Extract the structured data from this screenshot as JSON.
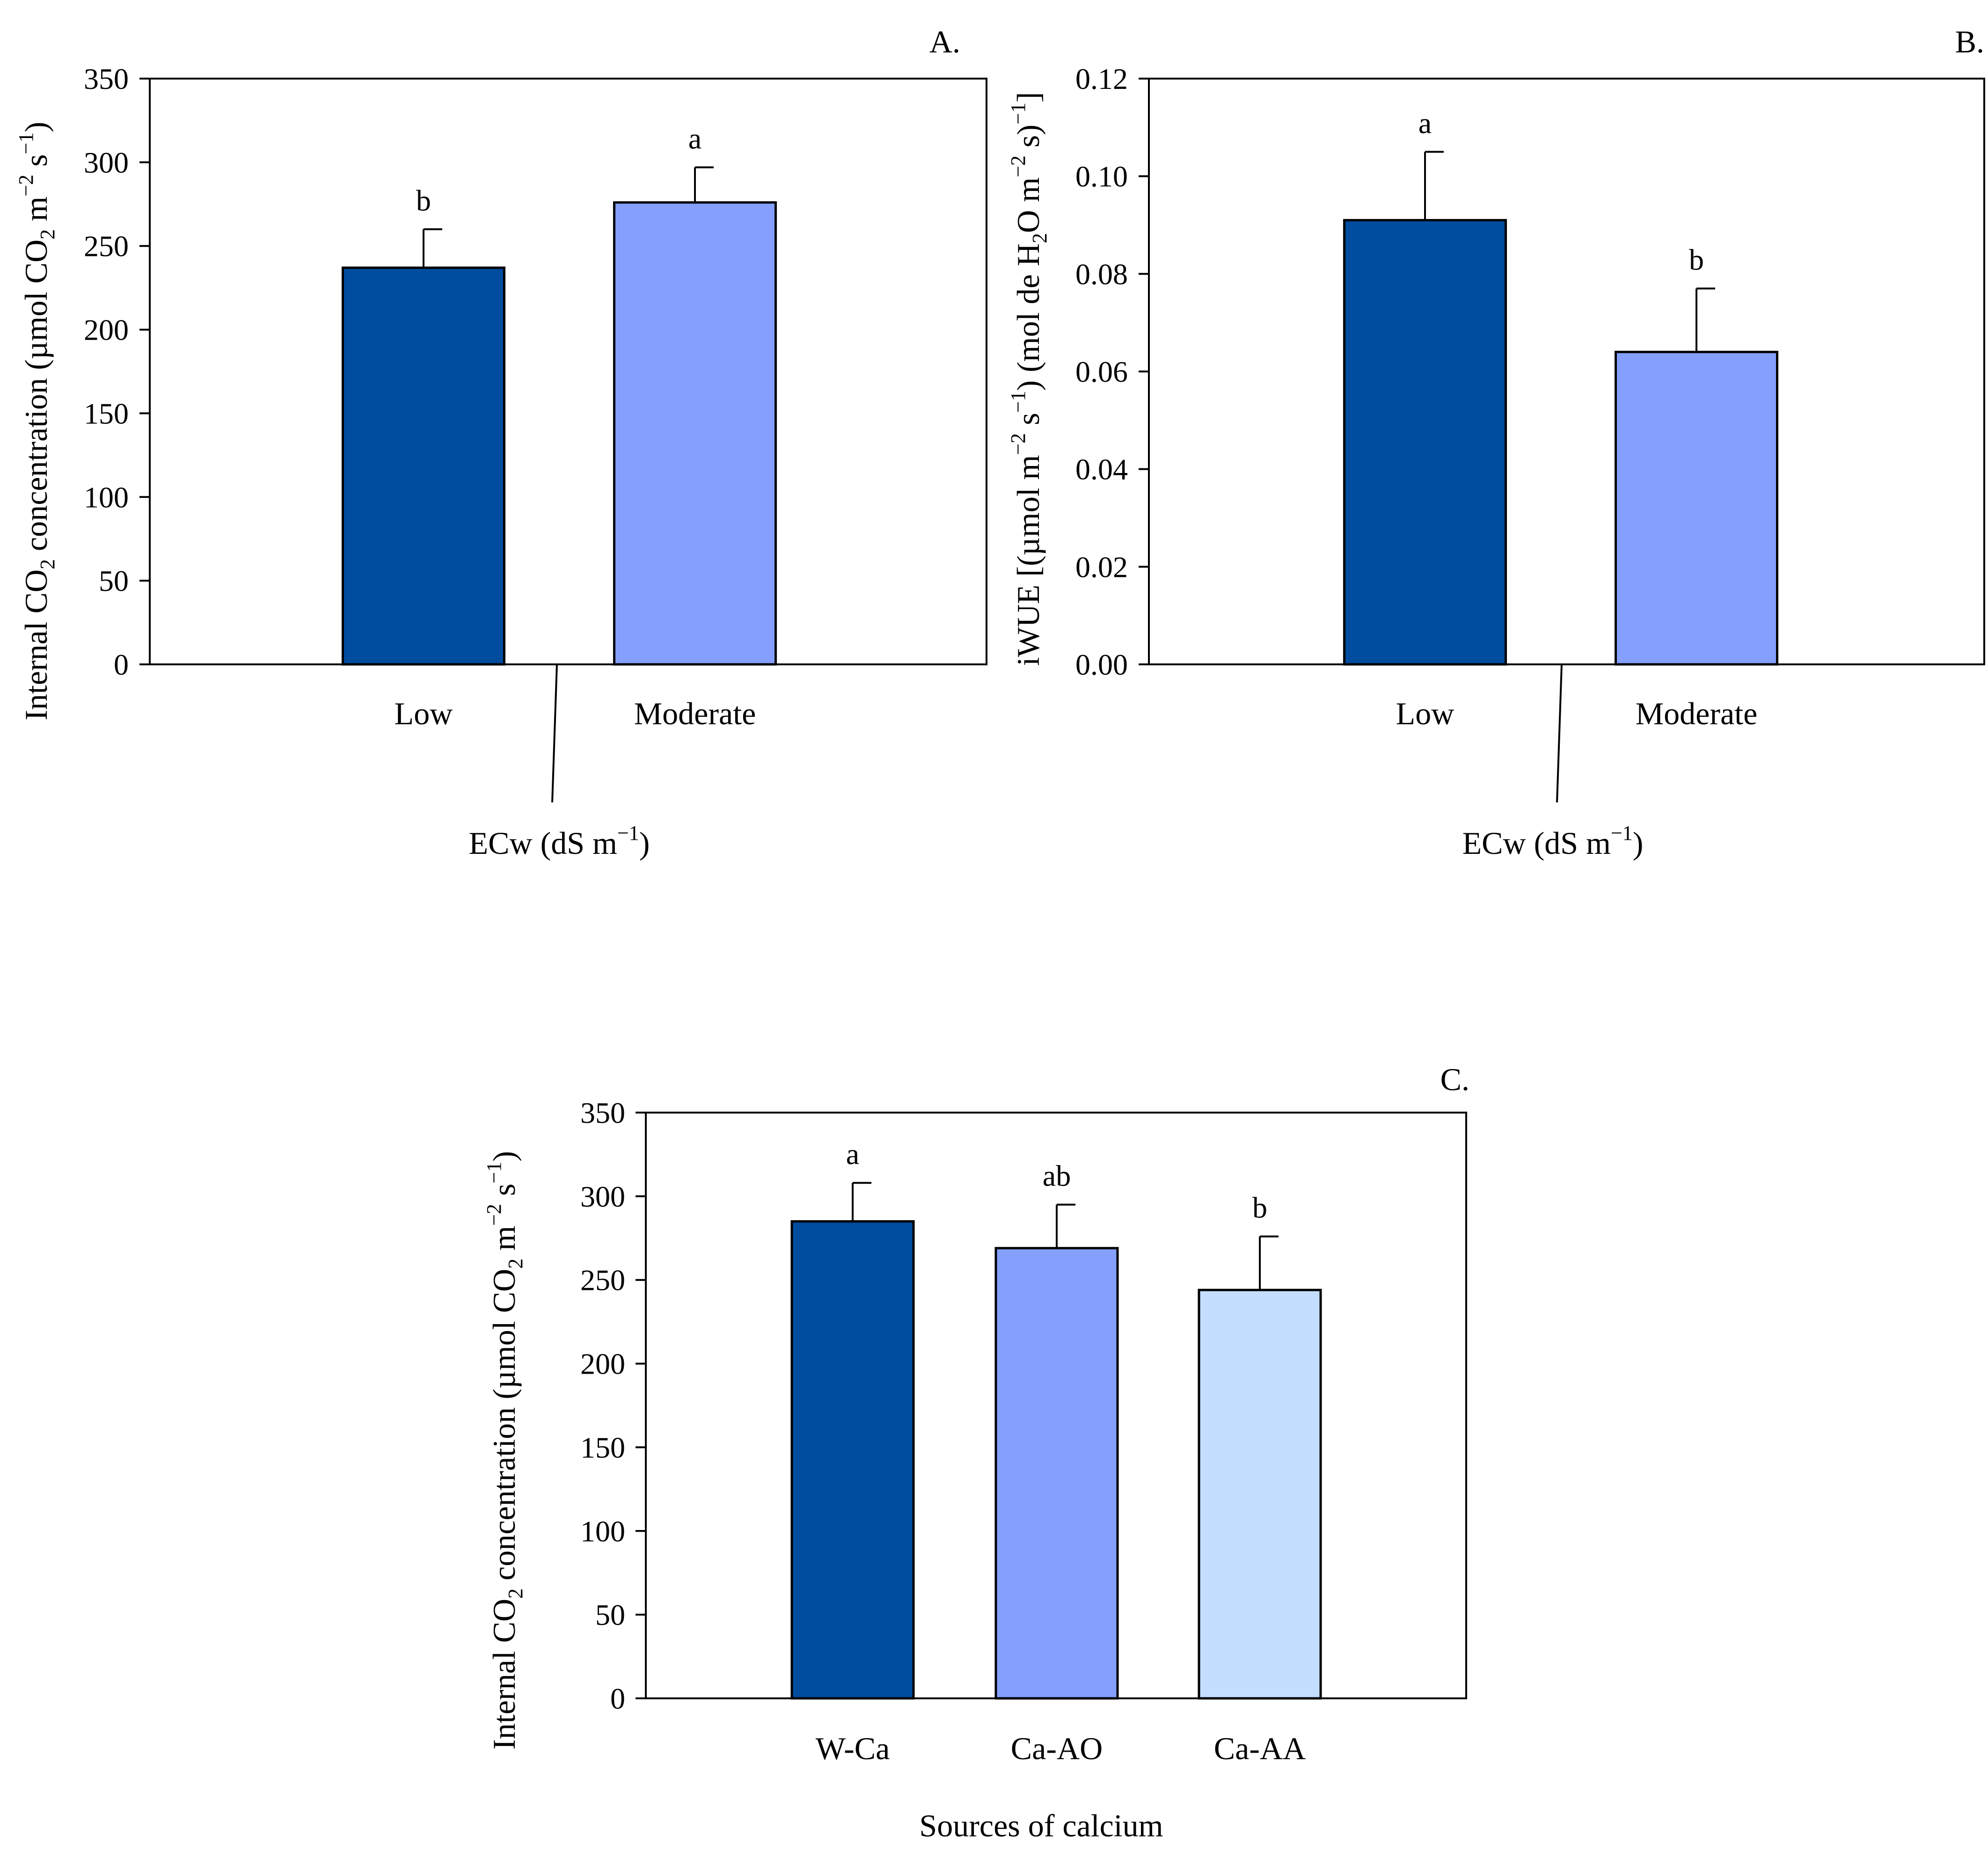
{
  "chart_data": [
    {
      "id": "A",
      "type": "bar",
      "panel_label": "A.",
      "categories": [
        "Low",
        "Moderate"
      ],
      "values": [
        237,
        276
      ],
      "errors": [
        23,
        21
      ],
      "letters": [
        "b",
        "a"
      ],
      "colors": [
        "#004C9E",
        "#849FFD"
      ],
      "ylim": [
        0,
        350
      ],
      "yticks": [
        "0",
        "50",
        "100",
        "150",
        "200",
        "250",
        "300",
        "350"
      ],
      "ylabel": "Internal CO2 concentration (µmol CO2 m−2 s−1)",
      "xlabel": "ECw (dS m−1)"
    },
    {
      "id": "B",
      "type": "bar",
      "panel_label": "B.",
      "categories": [
        "Low",
        "Moderate"
      ],
      "values": [
        0.091,
        0.064
      ],
      "errors": [
        0.014,
        0.013
      ],
      "letters": [
        "a",
        "b"
      ],
      "colors": [
        "#004C9E",
        "#849FFD"
      ],
      "ylim": [
        0,
        0.12
      ],
      "yticks": [
        "0.00",
        "0.02",
        "0.04",
        "0.06",
        "0.08",
        "0.10",
        "0.12"
      ],
      "ylabel": "iWUE [(µmol m−2 s−1) (mol de H2O m−2 s)−1]",
      "xlabel": "ECw (dS m−1)"
    },
    {
      "id": "C",
      "type": "bar",
      "panel_label": "C.",
      "categories": [
        "W-Ca",
        "Ca-AO",
        "Ca-AA"
      ],
      "values": [
        285,
        269,
        244
      ],
      "errors": [
        23,
        26,
        32
      ],
      "letters": [
        "a",
        "ab",
        "b"
      ],
      "colors": [
        "#004C9E",
        "#849FFD",
        "#C4DEFF"
      ],
      "ylim": [
        0,
        350
      ],
      "yticks": [
        "0",
        "50",
        "100",
        "150",
        "200",
        "250",
        "300",
        "350"
      ],
      "ylabel": "Internal CO2 concentration (µmol CO2 m−2 s−1)",
      "xlabel": "Sources of calcium"
    }
  ]
}
